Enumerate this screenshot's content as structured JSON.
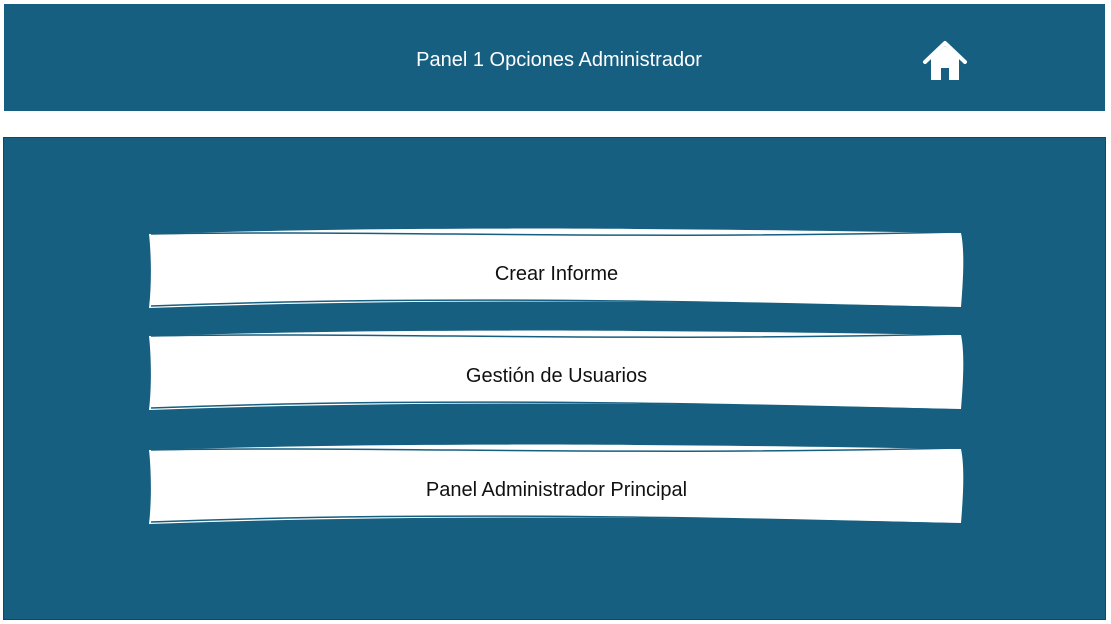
{
  "header": {
    "title": "Panel 1 Opciones Administrador",
    "home_icon": "home-icon"
  },
  "menu": {
    "items": [
      {
        "label": "Crear Informe"
      },
      {
        "label": "Gestión de Usuarios"
      },
      {
        "label": "Panel Administrador Principal"
      }
    ]
  },
  "colors": {
    "primary": "#165f80",
    "button_bg": "#ffffff",
    "text_dark": "#111111",
    "text_light": "#ffffff"
  }
}
